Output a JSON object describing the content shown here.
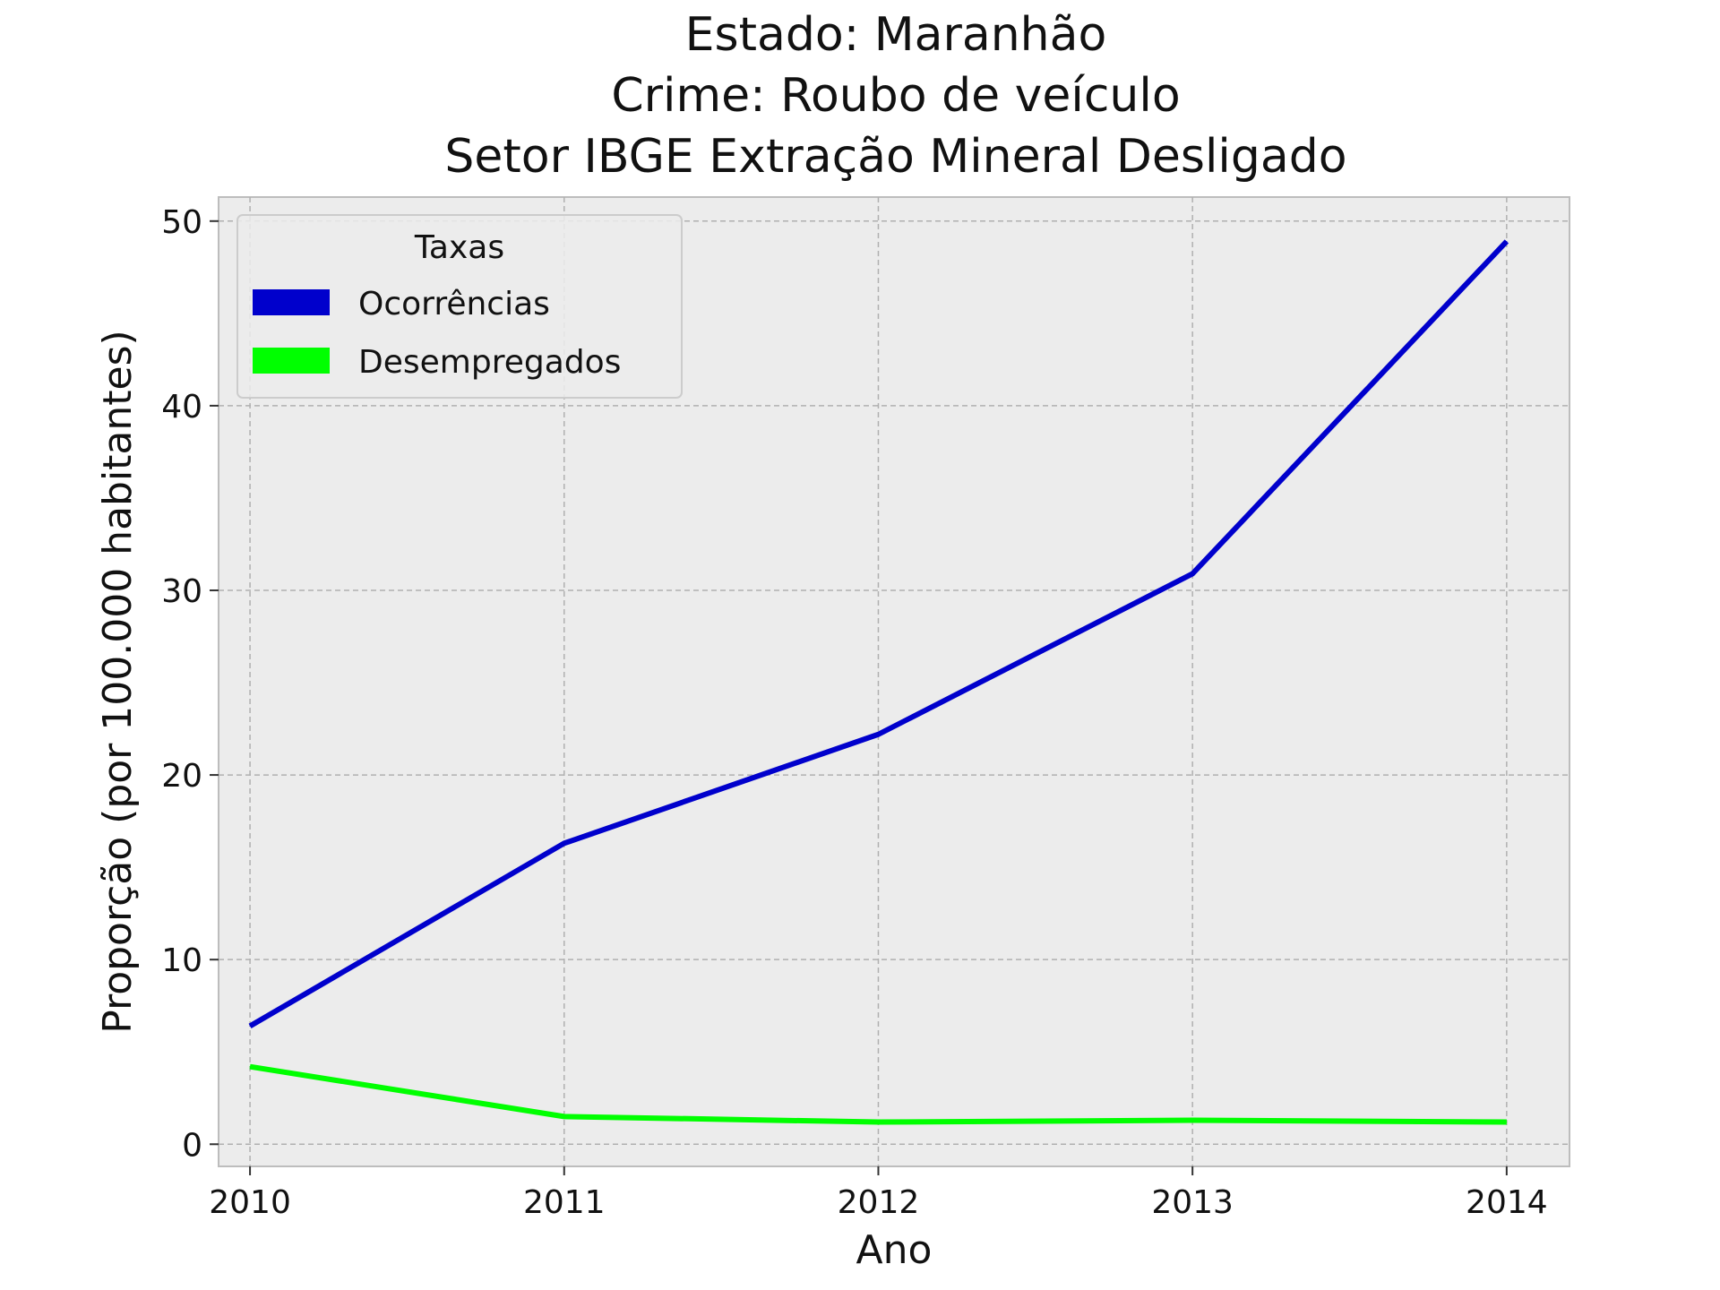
{
  "chart_data": {
    "type": "line",
    "title_lines": [
      "Estado: Maranhão",
      "Crime: Roubo de veículo",
      "Setor IBGE  Extração Mineral   Desligado"
    ],
    "xlabel": "Ano",
    "ylabel": "Proporção (por 100.000 habitantes)",
    "x": [
      2010,
      2011,
      2012,
      2013,
      2014
    ],
    "x_tick_labels": [
      "2010",
      "2011",
      "2012",
      "2013",
      "2014"
    ],
    "y_ticks": [
      0,
      10,
      20,
      30,
      40,
      50
    ],
    "y_tick_labels": [
      "0",
      "10",
      "20",
      "30",
      "40",
      "50"
    ],
    "xlim": [
      2009.9,
      2014.2
    ],
    "ylim": [
      -1.2,
      51.3
    ],
    "grid": true,
    "legend": {
      "title": "Taxas",
      "placement": "top-left"
    },
    "series": [
      {
        "name": "Ocorrências",
        "color": "#0000cc",
        "values": [
          6.4,
          16.3,
          22.2,
          30.9,
          48.9
        ]
      },
      {
        "name": "Desempregados",
        "color": "#00ff00",
        "values": [
          4.2,
          1.5,
          1.2,
          1.3,
          1.2
        ]
      }
    ]
  }
}
